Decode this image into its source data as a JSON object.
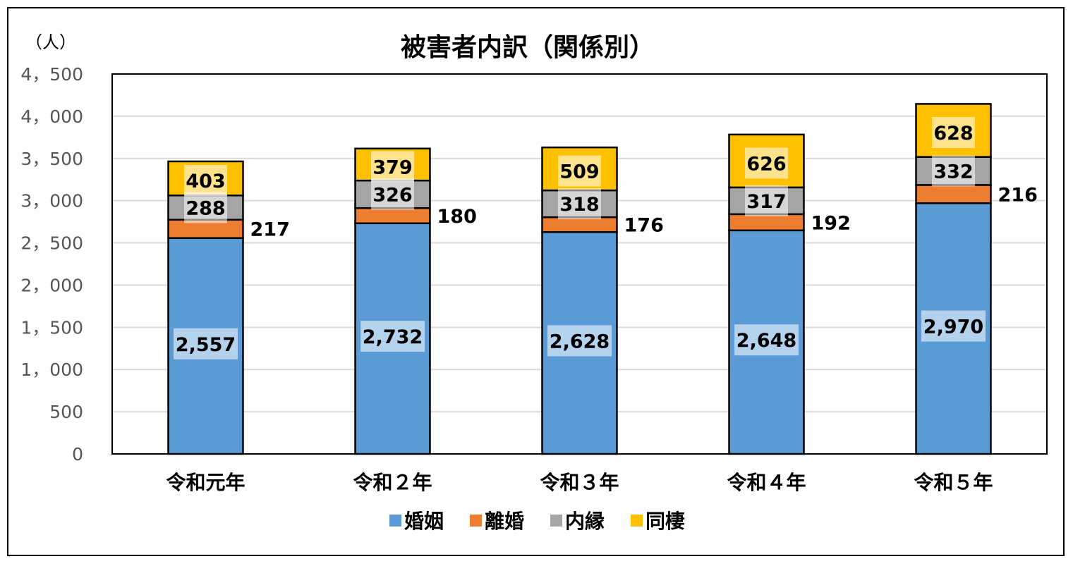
{
  "chart_data": {
    "type": "bar",
    "stacked": true,
    "title": "被害者内訳（関係別）",
    "ylabel": "（人）",
    "xlabel": "",
    "ylim": [
      0,
      4500
    ],
    "yticks": [
      0,
      500,
      1000,
      1500,
      2000,
      2500,
      3000,
      3500,
      4000,
      4500
    ],
    "ytick_labels": [
      "0",
      "500",
      "1，000",
      "1，500",
      "2，000",
      "2，500",
      "3，000",
      "3，500",
      "4，000",
      "4，500"
    ],
    "grid": true,
    "legend_position": "bottom",
    "categories": [
      "令和元年",
      "令和２年",
      "令和３年",
      "令和４年",
      "令和５年"
    ],
    "series": [
      {
        "name": "婚姻",
        "color": "#5B9BD5",
        "values": [
          2557,
          2732,
          2628,
          2648,
          2970
        ],
        "labels": [
          "2,557",
          "2,732",
          "2,628",
          "2,648",
          "2,970"
        ]
      },
      {
        "name": "離婚",
        "color": "#ED7D31",
        "values": [
          217,
          180,
          176,
          192,
          216
        ],
        "labels": [
          "217",
          "180",
          "176",
          "192",
          "216"
        ]
      },
      {
        "name": "内縁",
        "color": "#A5A5A5",
        "values": [
          288,
          326,
          318,
          317,
          332
        ],
        "labels": [
          "288",
          "326",
          "318",
          "317",
          "332"
        ]
      },
      {
        "name": "同棲",
        "color": "#FFC000",
        "values": [
          403,
          379,
          509,
          626,
          628
        ],
        "labels": [
          "403",
          "379",
          "509",
          "626",
          "628"
        ]
      }
    ]
  }
}
